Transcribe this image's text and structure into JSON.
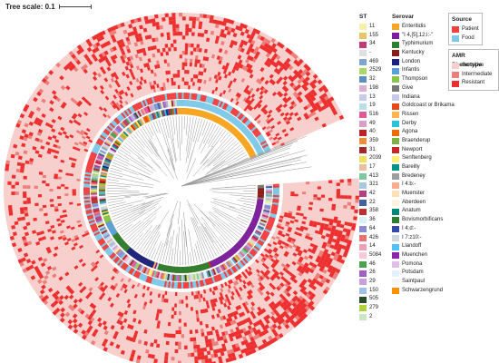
{
  "tree_scale": {
    "label": "Tree scale: 0.1"
  },
  "colors": {
    "sensitive": "#f7d0cd",
    "intermediate": "#ec7f7b",
    "resistant": "#ee2f2f",
    "patient": "#f04040",
    "food": "#7ec8e8"
  },
  "legend_st": {
    "title": "ST",
    "items": [
      {
        "label": "11",
        "color": "#f5f0a8"
      },
      {
        "label": "155",
        "color": "#e8c46a"
      },
      {
        "label": "34",
        "color": "#c03a74"
      },
      {
        "label": "-",
        "color": "#e0e0e0"
      },
      {
        "label": "469",
        "color": "#7fa4cf"
      },
      {
        "label": "2529",
        "color": "#a8d86a"
      },
      {
        "label": "32",
        "color": "#5f8fc0"
      },
      {
        "label": "198",
        "color": "#d8b0d0"
      },
      {
        "label": "13",
        "color": "#c8c8e8"
      },
      {
        "label": "19",
        "color": "#b8e0e8"
      },
      {
        "label": "516",
        "color": "#e05a9a"
      },
      {
        "label": "49",
        "color": "#d8a0c8"
      },
      {
        "label": "40",
        "color": "#c02020"
      },
      {
        "label": "359",
        "color": "#e8903a"
      },
      {
        "label": "31",
        "color": "#a02828"
      },
      {
        "label": "2039",
        "color": "#f0e060"
      },
      {
        "label": "17",
        "color": "#e8c0a0"
      },
      {
        "label": "413",
        "color": "#80c8a0"
      },
      {
        "label": "321",
        "color": "#a8c8e0"
      },
      {
        "label": "42",
        "color": "#b04080"
      },
      {
        "label": "22",
        "color": "#4060a0"
      },
      {
        "label": "358",
        "color": "#b83030"
      },
      {
        "label": "36",
        "color": "#d8f0f8"
      },
      {
        "label": "64",
        "color": "#8a8ad0"
      },
      {
        "label": "426",
        "color": "#e87070"
      },
      {
        "label": "14",
        "color": "#f0a0b0"
      },
      {
        "label": "5084",
        "color": "#f8c8d8"
      },
      {
        "label": "46",
        "color": "#50a050"
      },
      {
        "label": "26",
        "color": "#a060c0"
      },
      {
        "label": "29",
        "color": "#c8a0e0"
      },
      {
        "label": "150",
        "color": "#a0c0e8"
      },
      {
        "label": "505",
        "color": "#2a4a2a"
      },
      {
        "label": "279",
        "color": "#b0d040"
      },
      {
        "label": "2",
        "color": "#c8e8c0"
      }
    ]
  },
  "legend_serovar": {
    "title": "Serovar",
    "items": [
      {
        "label": "Enteritidis",
        "color": "#f6a623"
      },
      {
        "label": "\"I 4,[5],12:i:-\"",
        "color": "#7b1fa2"
      },
      {
        "label": "Typhimurium",
        "color": "#2e7d32"
      },
      {
        "label": "Kentucky",
        "color": "#8b1c1c"
      },
      {
        "label": "London",
        "color": "#1a237e"
      },
      {
        "label": "Infantis",
        "color": "#5aa0d8"
      },
      {
        "label": "Thompson",
        "color": "#8bc34a"
      },
      {
        "label": "Give",
        "color": "#777777"
      },
      {
        "label": "Indiana",
        "color": "#c8c8ec"
      },
      {
        "label": "Goldcoast or Brikama",
        "color": "#e64a19"
      },
      {
        "label": "Rissen",
        "color": "#ffb74d"
      },
      {
        "label": "Derby",
        "color": "#26c6da"
      },
      {
        "label": "Agona",
        "color": "#ef6c00"
      },
      {
        "label": "Braenderup",
        "color": "#7cb342"
      },
      {
        "label": "Newport",
        "color": "#c62828"
      },
      {
        "label": "Senftenberg",
        "color": "#fff176"
      },
      {
        "label": "Bareilly",
        "color": "#009688"
      },
      {
        "label": "Bredeney",
        "color": "#9e9e9e"
      },
      {
        "label": "I 4:b:-",
        "color": "#ffab91"
      },
      {
        "label": "Muenster",
        "color": "#ffe0b2"
      },
      {
        "label": "Aberdeen",
        "color": "#fff3e0"
      },
      {
        "label": "Anatum",
        "color": "#00897b"
      },
      {
        "label": "Bovismorbificans",
        "color": "#2e7d32"
      },
      {
        "label": "I 4:d:-",
        "color": "#3949ab"
      },
      {
        "label": "I 7:z10:-",
        "color": "#cfd8dc"
      },
      {
        "label": "Llandoff",
        "color": "#4fc3f7"
      },
      {
        "label": "Muenchen",
        "color": "#8e24aa"
      },
      {
        "label": "Pomona",
        "color": "#e1bee7"
      },
      {
        "label": "Potsdam",
        "color": "#e3f2fd"
      },
      {
        "label": "Saintpaul",
        "color": "#f5f5f5"
      },
      {
        "label": "Schwarzengrund",
        "color": "#ff8f00"
      }
    ]
  },
  "legend_source": {
    "title": "Source",
    "items": [
      {
        "label": "Patient",
        "color": "#f04040"
      },
      {
        "label": "Food",
        "color": "#7ec8e8"
      }
    ]
  },
  "legend_amr": {
    "title": "AMR Phenotype",
    "items": [
      {
        "label": "Sensitive",
        "color": "#f7d0cd"
      },
      {
        "label": "Intermediate",
        "color": "#ec7f7b"
      },
      {
        "label": "Resistant",
        "color": "#ee2f2f"
      }
    ]
  },
  "serovar_arcs": [
    {
      "serovar": "Enteritidis",
      "start_deg": -4,
      "end_deg": 64
    },
    {
      "serovar": "Kentucky",
      "start_deg": 88,
      "end_deg": 95
    },
    {
      "serovar": "\"I 4,[5],12:i:-\"",
      "start_deg": 96,
      "end_deg": 158
    },
    {
      "serovar": "Typhimurium",
      "start_deg": 159,
      "end_deg": 196
    },
    {
      "serovar": "London",
      "start_deg": 200,
      "end_deg": 222
    },
    {
      "serovar": "Typhimurium",
      "start_deg": 222,
      "end_deg": 236
    },
    {
      "serovar": "Infantis",
      "start_deg": 236,
      "end_deg": 246
    },
    {
      "serovar": "Thompson",
      "start_deg": 246,
      "end_deg": 251
    }
  ]
}
